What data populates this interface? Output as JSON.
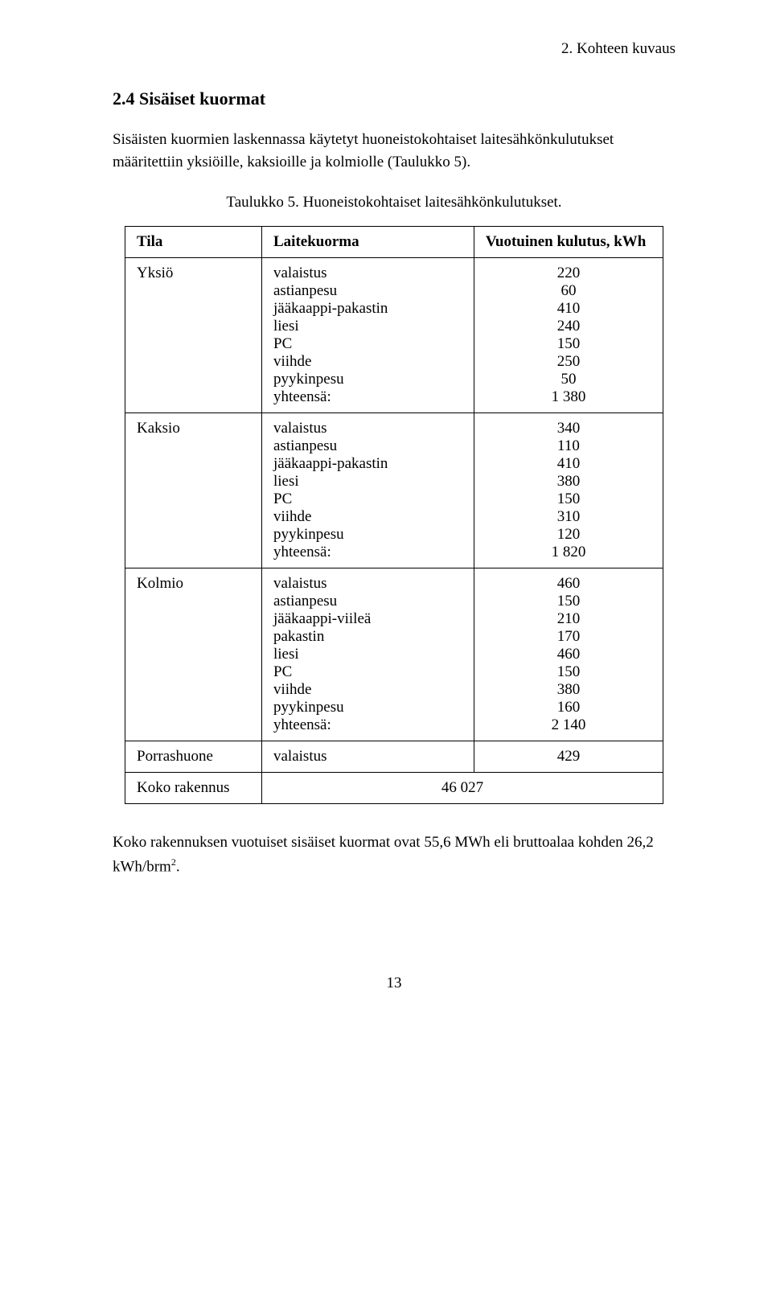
{
  "header": "2. Kohteen kuvaus",
  "section_title": "2.4  Sisäiset kuormat",
  "intro": "Sisäisten kuormien laskennassa käytetyt huoneistokohtaiset laitesähkönkulutukset määritettiin yksiöille, kaksioille ja kolmiolle (Taulukko 5).",
  "caption": "Taulukko 5. Huoneistokohtaiset laitesähkönkulutukset.",
  "table": {
    "headers": {
      "c1": "Tila",
      "c2": "Laitekuorma",
      "c3": "Vuotuinen kulutus, kWh"
    },
    "groups": [
      {
        "tila": "Yksiö",
        "rows": [
          {
            "label": "valaistus",
            "value": "220"
          },
          {
            "label": "astianpesu",
            "value": "60"
          },
          {
            "label": "jääkaappi-pakastin",
            "value": "410"
          },
          {
            "label": "liesi",
            "value": "240"
          },
          {
            "label": "PC",
            "value": "150"
          },
          {
            "label": "viihde",
            "value": "250"
          },
          {
            "label": "pyykinpesu",
            "value": "50"
          },
          {
            "label": "yhteensä:",
            "value": "1 380"
          }
        ]
      },
      {
        "tila": "Kaksio",
        "rows": [
          {
            "label": "valaistus",
            "value": "340"
          },
          {
            "label": "astianpesu",
            "value": "110"
          },
          {
            "label": "jääkaappi-pakastin",
            "value": "410"
          },
          {
            "label": "liesi",
            "value": "380"
          },
          {
            "label": "PC",
            "value": "150"
          },
          {
            "label": "viihde",
            "value": "310"
          },
          {
            "label": "pyykinpesu",
            "value": "120"
          },
          {
            "label": "yhteensä:",
            "value": "1 820"
          }
        ]
      },
      {
        "tila": "Kolmio",
        "rows": [
          {
            "label": "valaistus",
            "value": "460"
          },
          {
            "label": "astianpesu",
            "value": "150"
          },
          {
            "label": "jääkaappi-viileä",
            "value": "210"
          },
          {
            "label": "pakastin",
            "value": "170"
          },
          {
            "label": "liesi",
            "value": "460"
          },
          {
            "label": "PC",
            "value": "150"
          },
          {
            "label": "viihde",
            "value": "380"
          },
          {
            "label": "pyykinpesu",
            "value": "160"
          },
          {
            "label": "yhteensä:",
            "value": "2 140"
          }
        ]
      }
    ],
    "single_rows": [
      {
        "tila": "Porrashuone",
        "laite": "valaistus",
        "value": "429"
      },
      {
        "tila": "Koko rakennus",
        "value": "46 027"
      }
    ]
  },
  "outro_pre": "Koko rakennuksen vuotuiset sisäiset kuormat ovat 55,6 MWh eli bruttoalaa kohden 26,2 kWh/brm",
  "outro_sup": "2",
  "outro_post": ".",
  "page_number": "13"
}
